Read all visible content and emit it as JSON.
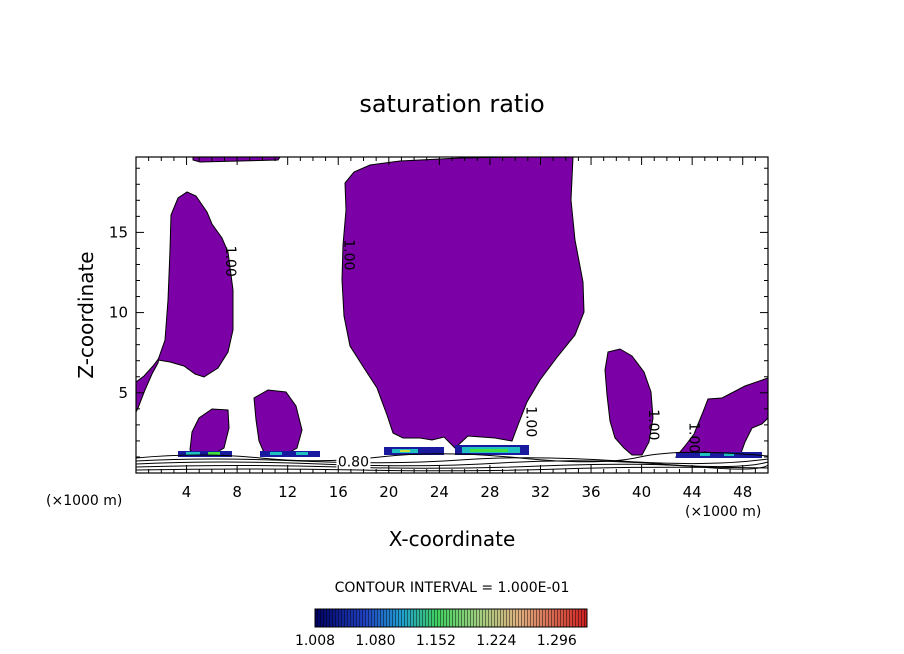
{
  "chart_data": {
    "type": "contour",
    "title": "saturation ratio",
    "xlabel": "X-coordinate",
    "ylabel": "Z-coordinate",
    "x_unit": "(×1000 m)",
    "x_unit_right": "(×1000 m)",
    "xlim": [
      0,
      50
    ],
    "ylim": [
      0,
      19.7
    ],
    "x_ticks": [
      4,
      8,
      12,
      16,
      20,
      24,
      28,
      32,
      36,
      40,
      44,
      48
    ],
    "y_ticks": [
      5,
      10,
      15
    ],
    "contour_interval_text": "CONTOUR INTERVAL = 1.000E-01",
    "contour_labels": [
      {
        "text": "1.00",
        "x": 7.1,
        "z": 13.2
      },
      {
        "text": "1.00",
        "x": 16.5,
        "z": 13.6
      },
      {
        "text": "1.00",
        "x": 30.9,
        "z": 3.2
      },
      {
        "text": "1.00",
        "x": 40.6,
        "z": 3.0
      },
      {
        "text": "1.00",
        "x": 43.8,
        "z": 2.2
      },
      {
        "text": "0.80",
        "x": 17.2,
        "z": 0.4
      }
    ],
    "regions_above_1": [
      {
        "name": "left-column",
        "x_range": [
          2.5,
          7.7
        ],
        "z_range": [
          6.4,
          17.7
        ]
      },
      {
        "name": "central-cloud",
        "x_range": [
          16.4,
          35.5
        ],
        "z_range": [
          1.0,
          19.7
        ]
      },
      {
        "name": "right-column",
        "x_range": [
          37.6,
          40.8
        ],
        "z_range": [
          0.8,
          7.5
        ]
      },
      {
        "name": "right-edge",
        "x_range": [
          42.7,
          50
        ],
        "z_range": [
          1.0,
          5.8
        ]
      }
    ],
    "colorbar": {
      "ticks": [
        "1.008",
        "1.080",
        "1.152",
        "1.224",
        "1.296"
      ],
      "min": 1.008,
      "max": 1.332
    },
    "colors": {
      "fill": "#7b00a6",
      "low": "#000080",
      "mid": "#00c8c8",
      "green": "#40e040",
      "high": "#e02020"
    }
  }
}
